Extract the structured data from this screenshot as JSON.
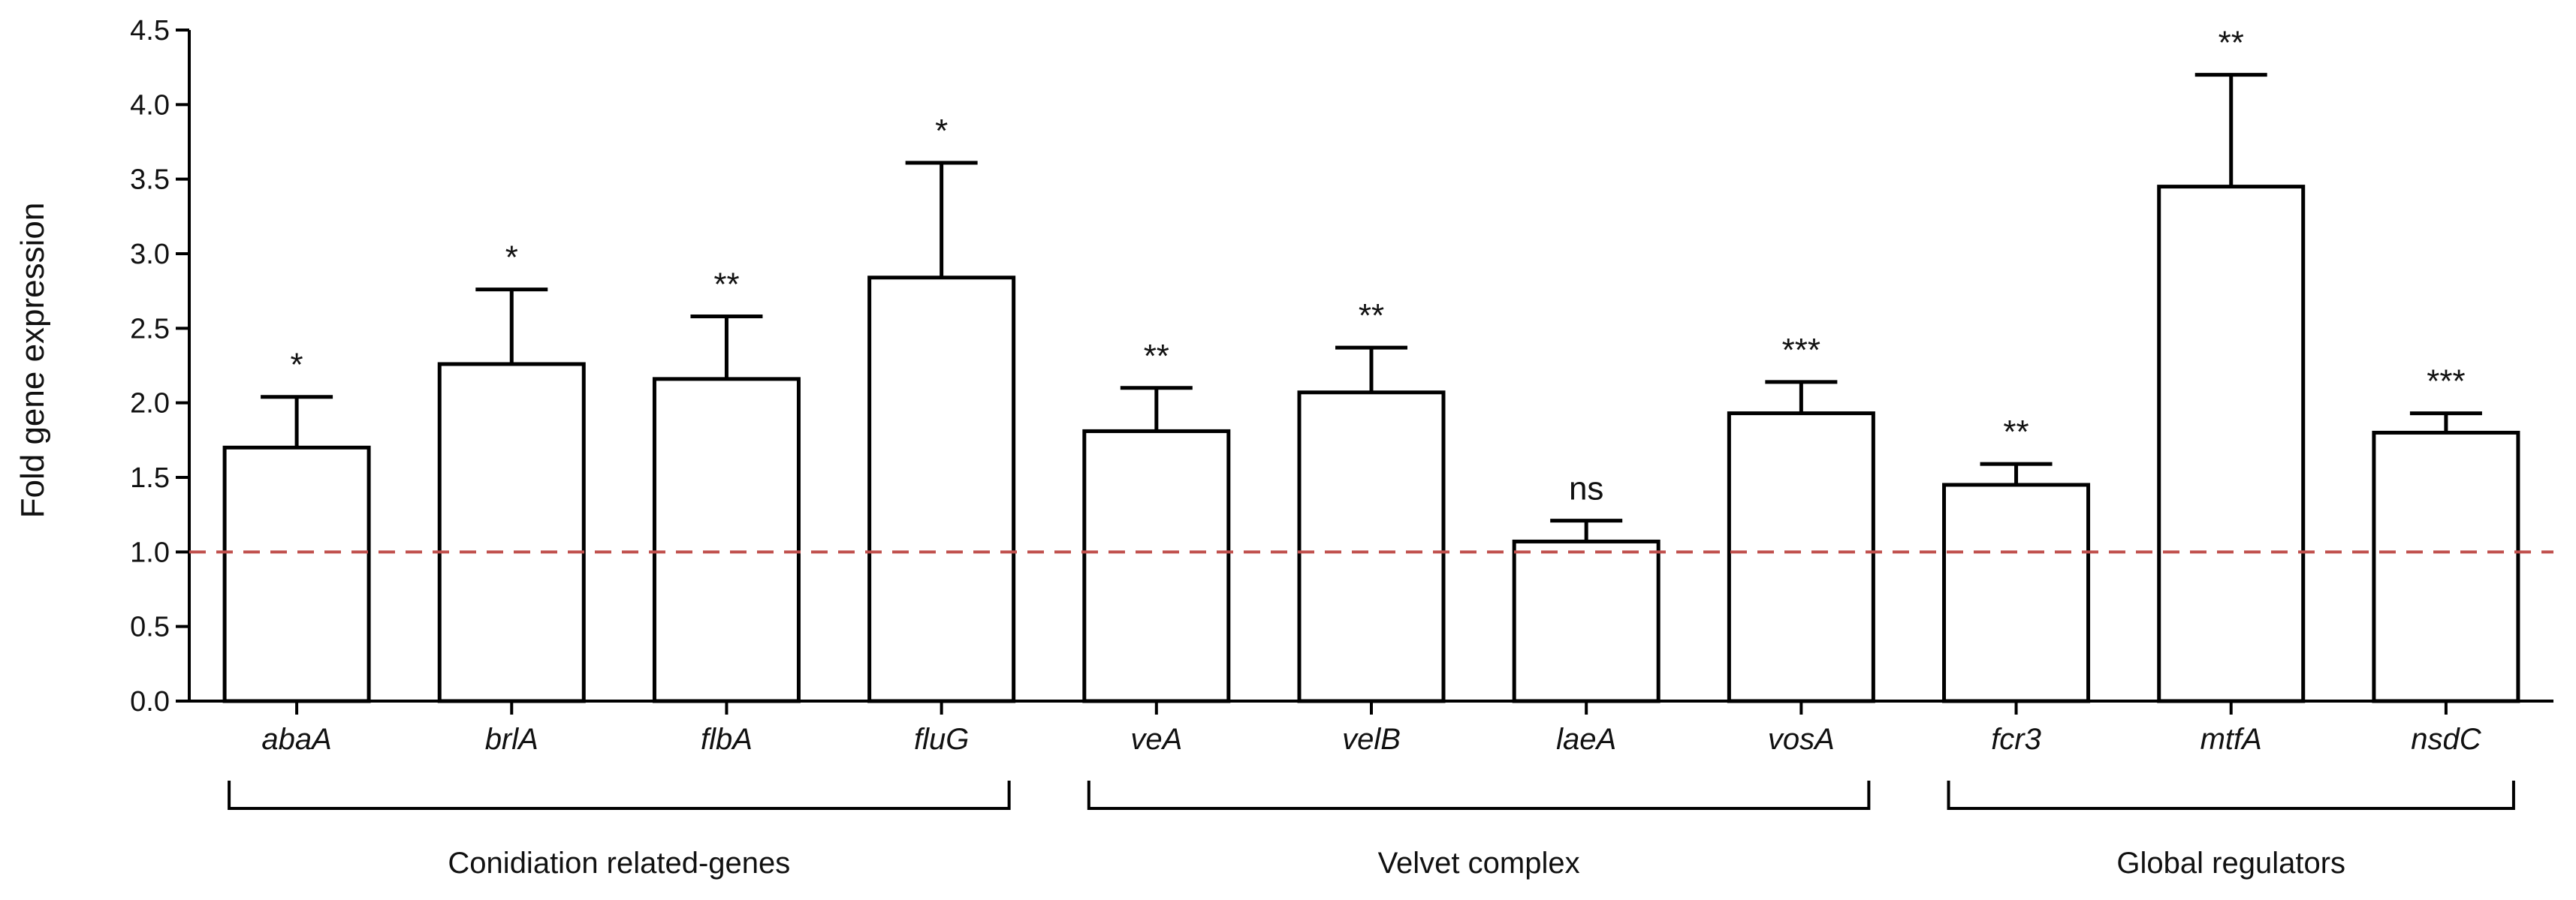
{
  "chart_data": {
    "type": "bar",
    "title": "",
    "xlabel": "",
    "ylabel": "Fold gene expression",
    "ylim": [
      0,
      4.5
    ],
    "yticks": [
      "0.0",
      "0.5",
      "1.0",
      "1.5",
      "2.0",
      "2.5",
      "3.0",
      "3.5",
      "4.0",
      "4.5"
    ],
    "categories": [
      "abaA",
      "brlA",
      "flbA",
      "fluG",
      "veA",
      "velB",
      "laeA",
      "vosA",
      "fcr3",
      "mtfA",
      "nsdC"
    ],
    "values": [
      1.7,
      2.26,
      2.16,
      2.84,
      1.81,
      2.07,
      1.07,
      1.93,
      1.45,
      3.45,
      1.8
    ],
    "errors": [
      0.34,
      0.5,
      0.42,
      0.77,
      0.29,
      0.3,
      0.14,
      0.21,
      0.14,
      0.75,
      0.13
    ],
    "significance": [
      "*",
      "*",
      "**",
      "*",
      "**",
      "**",
      "ns",
      "***",
      "**",
      "**",
      "***"
    ],
    "reference_line": {
      "y": 1.0,
      "color": "#c0504d",
      "style": "dashed"
    },
    "groups": [
      {
        "label": "Conidiation related-genes",
        "start": 0,
        "end": 3
      },
      {
        "label": "Velvet complex",
        "start": 4,
        "end": 7
      },
      {
        "label": "Global regulators",
        "start": 8,
        "end": 10
      }
    ],
    "grid": false,
    "legend": "none",
    "colors": {
      "bar_fill": "#ffffff",
      "bar_stroke": "#000000"
    }
  }
}
